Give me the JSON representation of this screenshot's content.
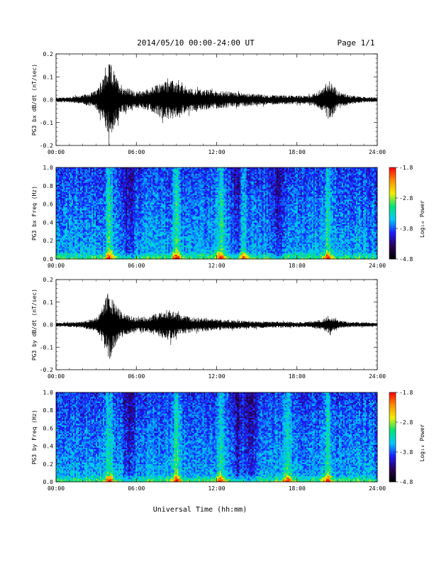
{
  "header": {
    "title": "2014/05/10  00:00-24:00 UT",
    "page": "Page 1/1"
  },
  "footer": {
    "xlabel": "Universal Time (hh:mm)"
  },
  "colors": {
    "trace": "#000000",
    "colormap": [
      "#000000",
      "#2a0055",
      "#1a1aff",
      "#00c8ff",
      "#00e27a",
      "#f0f000",
      "#ff9000",
      "#ff0000"
    ]
  },
  "chart_data": [
    {
      "type": "line",
      "ylabel": "PG3 bx dB/dt (nT/sec)",
      "x_ticks": [
        "00:00",
        "06:00",
        "12:00",
        "18:00",
        "24:00"
      ],
      "xlim": [
        0,
        24
      ],
      "ylim": [
        -0.2,
        0.2
      ],
      "y_ticks": [
        "0.2",
        "0.1",
        "0.0",
        "-0.1",
        "-0.2"
      ],
      "y_tick_values": [
        0.2,
        0.1,
        0.0,
        -0.1,
        -0.2
      ],
      "series": [
        {
          "x": [
            0,
            1,
            2,
            3,
            3.5,
            3.8,
            4.0,
            4.2,
            4.5,
            5,
            6,
            7,
            8,
            8.5,
            9,
            10,
            11,
            12,
            13,
            14,
            15,
            16,
            17,
            18,
            19,
            20,
            20.3,
            20.6,
            21,
            22,
            23,
            24
          ],
          "y": [
            0.01,
            0.012,
            0.02,
            0.04,
            0.09,
            0.14,
            0.16,
            0.15,
            0.1,
            0.06,
            0.035,
            0.05,
            0.08,
            0.09,
            0.075,
            0.05,
            0.045,
            0.04,
            0.035,
            0.03,
            0.025,
            0.02,
            0.02,
            0.018,
            0.02,
            0.05,
            0.09,
            0.08,
            0.04,
            0.02,
            0.012,
            0.01
          ]
        }
      ]
    },
    {
      "type": "heatmap",
      "ylabel": "PG3 bx Freq (Hz)",
      "x_ticks": [
        "00:00",
        "06:00",
        "12:00",
        "18:00",
        "24:00"
      ],
      "xlim": [
        0,
        24
      ],
      "ylim": [
        0.0,
        1.0
      ],
      "y_ticks": [
        "1.0",
        "0.8",
        "0.6",
        "0.4",
        "0.2",
        "0.0"
      ],
      "y_tick_values": [
        1.0,
        0.8,
        0.6,
        0.4,
        0.2,
        0.0
      ],
      "colorbar_label": "Log₁₀ Power",
      "colorbar_ticks": [
        "-1.8",
        "-2.8",
        "-3.8",
        "-4.8"
      ],
      "colorbar_tick_values": [
        -1.8,
        -2.8,
        -3.8,
        -4.8
      ],
      "bright_times": [
        4.0,
        9.0,
        12.3,
        14.0,
        20.3
      ],
      "dark_times": [
        5.5,
        13.7,
        16.5
      ]
    },
    {
      "type": "line",
      "ylabel": "PG3 by dB/dt (nT/sec)",
      "x_ticks": [
        "00:00",
        "06:00",
        "12:00",
        "18:00",
        "24:00"
      ],
      "xlim": [
        0,
        24
      ],
      "ylim": [
        -0.2,
        0.2
      ],
      "y_ticks": [
        "0.2",
        "0.1",
        "0.0",
        "-0.1",
        "-0.2"
      ],
      "y_tick_values": [
        0.2,
        0.1,
        0.0,
        -0.1,
        -0.2
      ],
      "series": [
        {
          "x": [
            0,
            1,
            2,
            3,
            3.5,
            3.8,
            4.0,
            4.3,
            4.6,
            5,
            6,
            7,
            8,
            8.5,
            9,
            10,
            11,
            12,
            13,
            14,
            15,
            16,
            17,
            18,
            19,
            20,
            20.3,
            20.6,
            21,
            22,
            23,
            24
          ],
          "y": [
            0.008,
            0.01,
            0.015,
            0.03,
            0.08,
            0.13,
            0.16,
            0.12,
            0.08,
            0.05,
            0.03,
            0.04,
            0.06,
            0.07,
            0.05,
            0.035,
            0.03,
            0.025,
            0.02,
            0.018,
            0.016,
            0.014,
            0.013,
            0.012,
            0.013,
            0.025,
            0.04,
            0.035,
            0.02,
            0.012,
            0.01,
            0.008
          ]
        }
      ]
    },
    {
      "type": "heatmap",
      "ylabel": "PG3 by Freq (Hz)",
      "x_ticks": [
        "00:00",
        "06:00",
        "12:00",
        "18:00",
        "24:00"
      ],
      "xlim": [
        0,
        24
      ],
      "ylim": [
        0.0,
        1.0
      ],
      "y_ticks": [
        "1.0",
        "0.8",
        "0.6",
        "0.4",
        "0.2",
        "0.0"
      ],
      "y_tick_values": [
        1.0,
        0.8,
        0.6,
        0.4,
        0.2,
        0.0
      ],
      "colorbar_label": "Log₁₀ Power",
      "colorbar_ticks": [
        "-1.8",
        "-2.8",
        "-3.8",
        "-4.8"
      ],
      "colorbar_tick_values": [
        -1.8,
        -2.8,
        -3.8,
        -4.8
      ],
      "bright_times": [
        4.0,
        9.0,
        12.3,
        17.3,
        20.3
      ],
      "dark_times": [
        5.5,
        13.5,
        14.6
      ]
    }
  ]
}
